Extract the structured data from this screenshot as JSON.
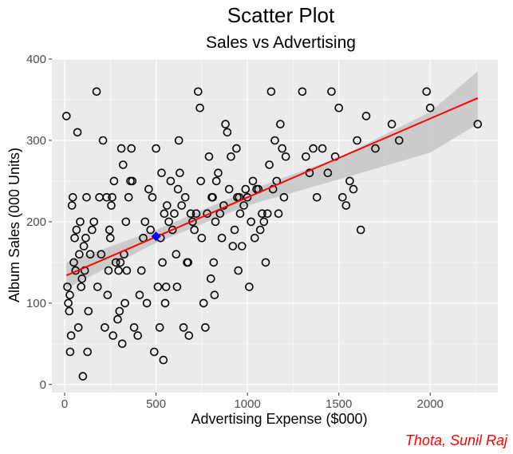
{
  "chart_data": {
    "type": "scatter",
    "title": "Scatter Plot",
    "subtitle": "Sales vs Advertising",
    "xlabel": "Advertising Expense ($000)",
    "ylabel": "Album Sales (000 Units)",
    "caption": "Thota, Sunil Raj",
    "xlim": [
      -70,
      2370
    ],
    "ylim": [
      -10,
      400
    ],
    "x_ticks": [
      0,
      500,
      1000,
      1500,
      2000
    ],
    "y_ticks": [
      0,
      100,
      200,
      300,
      400
    ],
    "x_tick_labels": [
      "0",
      "500",
      "1000",
      "1500",
      "2000"
    ],
    "y_tick_labels": [
      "0",
      "100",
      "200",
      "300",
      "400"
    ],
    "grid": true,
    "legend": "none",
    "colors": {
      "panel": "#ebebeb",
      "grid": "#ffffff",
      "points": "#000000",
      "regression": "#ff0000",
      "confidence_band": "#c8c8c8",
      "mean_point": "#0000ff",
      "caption": "#ff0000"
    },
    "regression_line": {
      "x": [
        10,
        2260
      ],
      "y": [
        134,
        352
      ]
    },
    "confidence_band": {
      "x": [
        10,
        500,
        1000,
        1500,
        2000,
        2260
      ],
      "lower": [
        118,
        174,
        220,
        252,
        285,
        320
      ],
      "upper": [
        150,
        190,
        238,
        279,
        335,
        385
      ]
    },
    "mean_point": {
      "x": 500,
      "y": 182
    },
    "points": [
      [
        10,
        330
      ],
      [
        15,
        120
      ],
      [
        20,
        100
      ],
      [
        25,
        90
      ],
      [
        28,
        110
      ],
      [
        30,
        40
      ],
      [
        35,
        60
      ],
      [
        40,
        220
      ],
      [
        45,
        230
      ],
      [
        50,
        150
      ],
      [
        55,
        180
      ],
      [
        60,
        140
      ],
      [
        65,
        190
      ],
      [
        70,
        310
      ],
      [
        75,
        70
      ],
      [
        80,
        160
      ],
      [
        85,
        200
      ],
      [
        90,
        120
      ],
      [
        95,
        130
      ],
      [
        100,
        10
      ],
      [
        105,
        170
      ],
      [
        110,
        140
      ],
      [
        115,
        180
      ],
      [
        120,
        230
      ],
      [
        125,
        40
      ],
      [
        130,
        90
      ],
      [
        140,
        160
      ],
      [
        150,
        190
      ],
      [
        160,
        200
      ],
      [
        175,
        360
      ],
      [
        180,
        120
      ],
      [
        190,
        230
      ],
      [
        200,
        160
      ],
      [
        210,
        300
      ],
      [
        220,
        70
      ],
      [
        230,
        230
      ],
      [
        235,
        110
      ],
      [
        240,
        140
      ],
      [
        245,
        190
      ],
      [
        250,
        180
      ],
      [
        255,
        220
      ],
      [
        260,
        230
      ],
      [
        265,
        60
      ],
      [
        270,
        250
      ],
      [
        280,
        150
      ],
      [
        290,
        80
      ],
      [
        295,
        140
      ],
      [
        300,
        90
      ],
      [
        305,
        150
      ],
      [
        310,
        290
      ],
      [
        315,
        50
      ],
      [
        320,
        270
      ],
      [
        325,
        160
      ],
      [
        330,
        100
      ],
      [
        335,
        200
      ],
      [
        340,
        140
      ],
      [
        350,
        230
      ],
      [
        360,
        250
      ],
      [
        365,
        290
      ],
      [
        370,
        250
      ],
      [
        380,
        70
      ],
      [
        400,
        60
      ],
      [
        410,
        110
      ],
      [
        420,
        140
      ],
      [
        430,
        180
      ],
      [
        440,
        200
      ],
      [
        450,
        100
      ],
      [
        460,
        240
      ],
      [
        470,
        190
      ],
      [
        480,
        230
      ],
      [
        490,
        40
      ],
      [
        500,
        290
      ],
      [
        510,
        120
      ],
      [
        520,
        70
      ],
      [
        525,
        180
      ],
      [
        530,
        260
      ],
      [
        535,
        150
      ],
      [
        540,
        30
      ],
      [
        545,
        210
      ],
      [
        550,
        100
      ],
      [
        555,
        120
      ],
      [
        560,
        220
      ],
      [
        570,
        200
      ],
      [
        580,
        250
      ],
      [
        590,
        190
      ],
      [
        600,
        210
      ],
      [
        610,
        160
      ],
      [
        615,
        120
      ],
      [
        620,
        240
      ],
      [
        625,
        300
      ],
      [
        630,
        260
      ],
      [
        640,
        220
      ],
      [
        650,
        70
      ],
      [
        660,
        230
      ],
      [
        670,
        150
      ],
      [
        675,
        150
      ],
      [
        680,
        60
      ],
      [
        690,
        210
      ],
      [
        700,
        200
      ],
      [
        710,
        190
      ],
      [
        720,
        210
      ],
      [
        730,
        360
      ],
      [
        740,
        340
      ],
      [
        745,
        250
      ],
      [
        750,
        180
      ],
      [
        760,
        100
      ],
      [
        770,
        70
      ],
      [
        780,
        210
      ],
      [
        790,
        280
      ],
      [
        800,
        130
      ],
      [
        805,
        230
      ],
      [
        810,
        230
      ],
      [
        815,
        150
      ],
      [
        820,
        110
      ],
      [
        825,
        200
      ],
      [
        830,
        250
      ],
      [
        840,
        260
      ],
      [
        850,
        210
      ],
      [
        860,
        180
      ],
      [
        870,
        220
      ],
      [
        880,
        320
      ],
      [
        890,
        310
      ],
      [
        900,
        240
      ],
      [
        910,
        280
      ],
      [
        920,
        170
      ],
      [
        930,
        190
      ],
      [
        940,
        290
      ],
      [
        945,
        230
      ],
      [
        950,
        140
      ],
      [
        955,
        230
      ],
      [
        960,
        210
      ],
      [
        970,
        170
      ],
      [
        980,
        220
      ],
      [
        990,
        240
      ],
      [
        1000,
        230
      ],
      [
        1010,
        120
      ],
      [
        1020,
        200
      ],
      [
        1030,
        250
      ],
      [
        1040,
        180
      ],
      [
        1050,
        240
      ],
      [
        1060,
        240
      ],
      [
        1070,
        190
      ],
      [
        1080,
        210
      ],
      [
        1090,
        200
      ],
      [
        1100,
        150
      ],
      [
        1110,
        210
      ],
      [
        1120,
        270
      ],
      [
        1130,
        360
      ],
      [
        1140,
        240
      ],
      [
        1150,
        300
      ],
      [
        1160,
        250
      ],
      [
        1170,
        210
      ],
      [
        1180,
        320
      ],
      [
        1190,
        290
      ],
      [
        1200,
        230
      ],
      [
        1210,
        280
      ],
      [
        1300,
        360
      ],
      [
        1320,
        280
      ],
      [
        1340,
        260
      ],
      [
        1360,
        290
      ],
      [
        1380,
        230
      ],
      [
        1410,
        290
      ],
      [
        1440,
        260
      ],
      [
        1460,
        360
      ],
      [
        1480,
        280
      ],
      [
        1500,
        340
      ],
      [
        1520,
        230
      ],
      [
        1540,
        220
      ],
      [
        1560,
        250
      ],
      [
        1580,
        240
      ],
      [
        1600,
        300
      ],
      [
        1620,
        190
      ],
      [
        1650,
        330
      ],
      [
        1700,
        290
      ],
      [
        1790,
        320
      ],
      [
        1830,
        300
      ],
      [
        1980,
        360
      ],
      [
        2000,
        340
      ],
      [
        2260,
        320
      ]
    ]
  }
}
